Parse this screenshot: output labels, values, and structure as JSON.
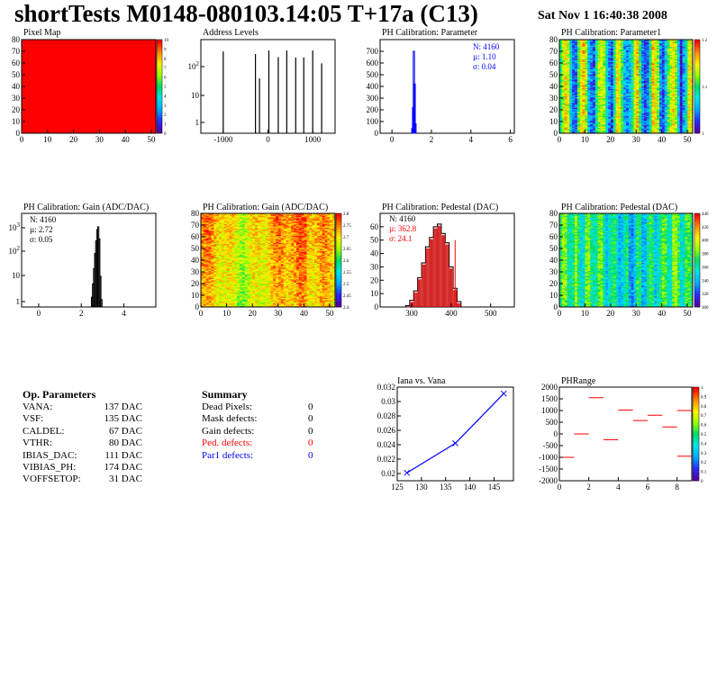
{
  "header": {
    "title": "shortTests M0148-080103.14:05 T+17a (C13)",
    "date": "Sat Nov  1 16:40:38 2008"
  },
  "colors": {
    "red": "#ff0000",
    "blue": "#0000ff",
    "black": "#000000",
    "ped_hatch": "#cc0000"
  },
  "chart_data": [
    {
      "id": "pixel-map",
      "type": "heatmap",
      "title": "Pixel Map",
      "x_ticks": [
        "0",
        "10",
        "20",
        "30",
        "40",
        "50"
      ],
      "y_ticks": [
        "0",
        "10",
        "20",
        "30",
        "40",
        "50",
        "60",
        "70",
        "80"
      ],
      "xlim": [
        0,
        52
      ],
      "ylim": [
        0,
        80
      ],
      "palette_ticks": [
        "0",
        "1",
        "2",
        "3",
        "4",
        "5",
        "6",
        "7",
        "8",
        "9",
        "10"
      ],
      "fill": "uniform red (all pixels at max)"
    },
    {
      "id": "address-levels",
      "type": "bar",
      "title": "Address Levels",
      "x_ticks": [
        "-1000",
        "0",
        "1000"
      ],
      "y_ticks": [
        "1",
        "10",
        "10^2"
      ],
      "log_y": true,
      "xlim": [
        -1500,
        1500
      ],
      "peaks": [
        {
          "x": -1000,
          "y": 520
        },
        {
          "x": -280,
          "y": 420
        },
        {
          "x": -190,
          "y": 60
        },
        {
          "x": 20,
          "y": 560
        },
        {
          "x": 230,
          "y": 330
        },
        {
          "x": 420,
          "y": 560
        },
        {
          "x": 620,
          "y": 320
        },
        {
          "x": 800,
          "y": 320
        },
        {
          "x": 1000,
          "y": 560
        },
        {
          "x": 1200,
          "y": 200
        }
      ]
    },
    {
      "id": "ph-cal-parameter",
      "type": "bar",
      "title": "PH Calibration: Parameter",
      "x_ticks": [
        "0",
        "2",
        "4",
        "6"
      ],
      "y_ticks": [
        "0",
        "100",
        "200",
        "300",
        "400",
        "500",
        "600",
        "700"
      ],
      "xlim": [
        -0.6,
        6.2
      ],
      "ylim": [
        0,
        800
      ],
      "stats": {
        "n": "N: 4160",
        "mu": "µ: 1.10",
        "sigma": "σ: 0.04"
      },
      "bins": [
        {
          "x": 1.02,
          "y": 40
        },
        {
          "x": 1.06,
          "y": 220
        },
        {
          "x": 1.1,
          "y": 700
        },
        {
          "x": 1.14,
          "y": 420
        },
        {
          "x": 1.18,
          "y": 80
        }
      ]
    },
    {
      "id": "ph-cal-parameter1",
      "type": "heatmap",
      "title": "PH Calibration: Parameter1",
      "x_ticks": [
        "0",
        "10",
        "20",
        "30",
        "40",
        "50"
      ],
      "y_ticks": [
        "0",
        "10",
        "20",
        "30",
        "40",
        "50",
        "60",
        "70",
        "80"
      ],
      "palette_ticks": [
        "1",
        "1.1",
        "1.2"
      ]
    },
    {
      "id": "gain-hist",
      "type": "bar",
      "title": "PH Calibration: Gain (ADC/DAC)",
      "x_ticks": [
        "0",
        "2",
        "4"
      ],
      "y_ticks": [
        "1",
        "10",
        "10^2",
        "10^3"
      ],
      "log_y": true,
      "xlim": [
        -0.8,
        5.5
      ],
      "stats": {
        "n": "N: 4160",
        "mu": "µ: 2.72",
        "sigma": "σ: 0.05"
      },
      "bins": [
        {
          "x": 2.5,
          "y": 1.5
        },
        {
          "x": 2.55,
          "y": 5
        },
        {
          "x": 2.6,
          "y": 20
        },
        {
          "x": 2.65,
          "y": 80
        },
        {
          "x": 2.7,
          "y": 250
        },
        {
          "x": 2.75,
          "y": 700
        },
        {
          "x": 2.8,
          "y": 900
        },
        {
          "x": 2.85,
          "y": 300
        },
        {
          "x": 2.9,
          "y": 10
        },
        {
          "x": 2.95,
          "y": 1.2
        }
      ]
    },
    {
      "id": "gain-map",
      "type": "heatmap",
      "title": "PH Calibration: Gain (ADC/DAC)",
      "x_ticks": [
        "0",
        "10",
        "20",
        "30",
        "40",
        "50"
      ],
      "y_ticks": [
        "0",
        "10",
        "20",
        "30",
        "40",
        "50",
        "60",
        "70",
        "80"
      ],
      "palette_ticks": [
        "2.4",
        "2.45",
        "2.5",
        "2.55",
        "2.6",
        "2.65",
        "2.7",
        "2.75",
        "2.8"
      ]
    },
    {
      "id": "pedestal-hist",
      "type": "bar",
      "title": "PH Calibration: Pedestal (DAC)",
      "x_ticks": [
        "300",
        "400",
        "500"
      ],
      "y_ticks": [
        "0",
        "10",
        "20",
        "30",
        "40",
        "50",
        "60"
      ],
      "xlim": [
        220,
        560
      ],
      "ylim": [
        0,
        70
      ],
      "stats": {
        "n": "N: 4160",
        "mu": "µ: 362.8",
        "sigma": "σ: 24.1"
      },
      "bins": [
        {
          "x": 290,
          "y": 1
        },
        {
          "x": 300,
          "y": 5
        },
        {
          "x": 310,
          "y": 12
        },
        {
          "x": 320,
          "y": 22
        },
        {
          "x": 330,
          "y": 33
        },
        {
          "x": 340,
          "y": 45
        },
        {
          "x": 350,
          "y": 52
        },
        {
          "x": 360,
          "y": 60
        },
        {
          "x": 370,
          "y": 62
        },
        {
          "x": 380,
          "y": 55
        },
        {
          "x": 390,
          "y": 48
        },
        {
          "x": 400,
          "y": 30
        },
        {
          "x": 410,
          "y": 14
        },
        {
          "x": 420,
          "y": 4
        }
      ],
      "red_marker_x": 410
    },
    {
      "id": "pedestal-map",
      "type": "heatmap",
      "title": "PH Calibration: Pedestal (DAC)",
      "x_ticks": [
        "0",
        "10",
        "20",
        "30",
        "40",
        "50"
      ],
      "y_ticks": [
        "0",
        "10",
        "20",
        "30",
        "40",
        "50",
        "60",
        "70",
        "80"
      ],
      "palette_ticks": [
        "300",
        "320",
        "340",
        "360",
        "380",
        "400",
        "420",
        "440"
      ]
    },
    {
      "id": "iana-vana",
      "type": "line",
      "title": "Iana vs. Vana",
      "x_ticks": [
        "125",
        "130",
        "135",
        "140",
        "145"
      ],
      "y_ticks": [
        "0.02",
        "0.022",
        "0.024",
        "0.026",
        "0.028",
        "0.03",
        "0.032"
      ],
      "xlim": [
        125,
        149
      ],
      "ylim": [
        0.019,
        0.032
      ],
      "x": [
        127,
        137,
        147
      ],
      "y": [
        0.0201,
        0.0242,
        0.0311
      ]
    },
    {
      "id": "ph-range",
      "type": "scatter",
      "title": "PHRange",
      "x_ticks": [
        "0",
        "2",
        "4",
        "6",
        "8"
      ],
      "y_ticks": [
        "-2000",
        "-1500",
        "-1000",
        "-500",
        "0",
        "500",
        "1000",
        "1500",
        "2000"
      ],
      "xlim": [
        0,
        9
      ],
      "ylim": [
        -2000,
        2000
      ],
      "palette_ticks": [
        "0",
        "0.1",
        "0.2",
        "0.3",
        "0.4",
        "0.5",
        "0.6",
        "0.7",
        "0.8",
        "0.9",
        "1"
      ],
      "segments": [
        {
          "x": 0.5,
          "y": -1000
        },
        {
          "x": 1.5,
          "y": 0
        },
        {
          "x": 2.5,
          "y": 1550
        },
        {
          "x": 3.5,
          "y": -250
        },
        {
          "x": 4.5,
          "y": 1020
        },
        {
          "x": 5.5,
          "y": 570
        },
        {
          "x": 6.5,
          "y": 800
        },
        {
          "x": 7.5,
          "y": 300
        },
        {
          "x": 8.5,
          "y": 1000
        },
        {
          "x": 8.5,
          "y": -950
        }
      ]
    }
  ],
  "op_params": {
    "title": "Op. Parameters",
    "rows": [
      {
        "name": "VANA:",
        "value": "137 DAC"
      },
      {
        "name": "VSF:",
        "value": "135 DAC"
      },
      {
        "name": "CALDEL:",
        "value": "67 DAC"
      },
      {
        "name": "VTHR:",
        "value": "80 DAC"
      },
      {
        "name": "IBIAS_DAC:",
        "value": "111 DAC"
      },
      {
        "name": "VIBIAS_PH:",
        "value": "174 DAC"
      },
      {
        "name": "VOFFSETOP:",
        "value": "31 DAC"
      }
    ]
  },
  "summary": {
    "title": "Summary",
    "rows": [
      {
        "name": "Dead Pixels:",
        "value": "0",
        "color": "#000000"
      },
      {
        "name": "Mask defects:",
        "value": "0",
        "color": "#000000"
      },
      {
        "name": "Gain defects:",
        "value": "0",
        "color": "#000000"
      },
      {
        "name": "Ped. defects:",
        "value": "0",
        "color": "#ff0000"
      },
      {
        "name": "Par1 defects:",
        "value": "0",
        "color": "#0000ff"
      }
    ]
  }
}
